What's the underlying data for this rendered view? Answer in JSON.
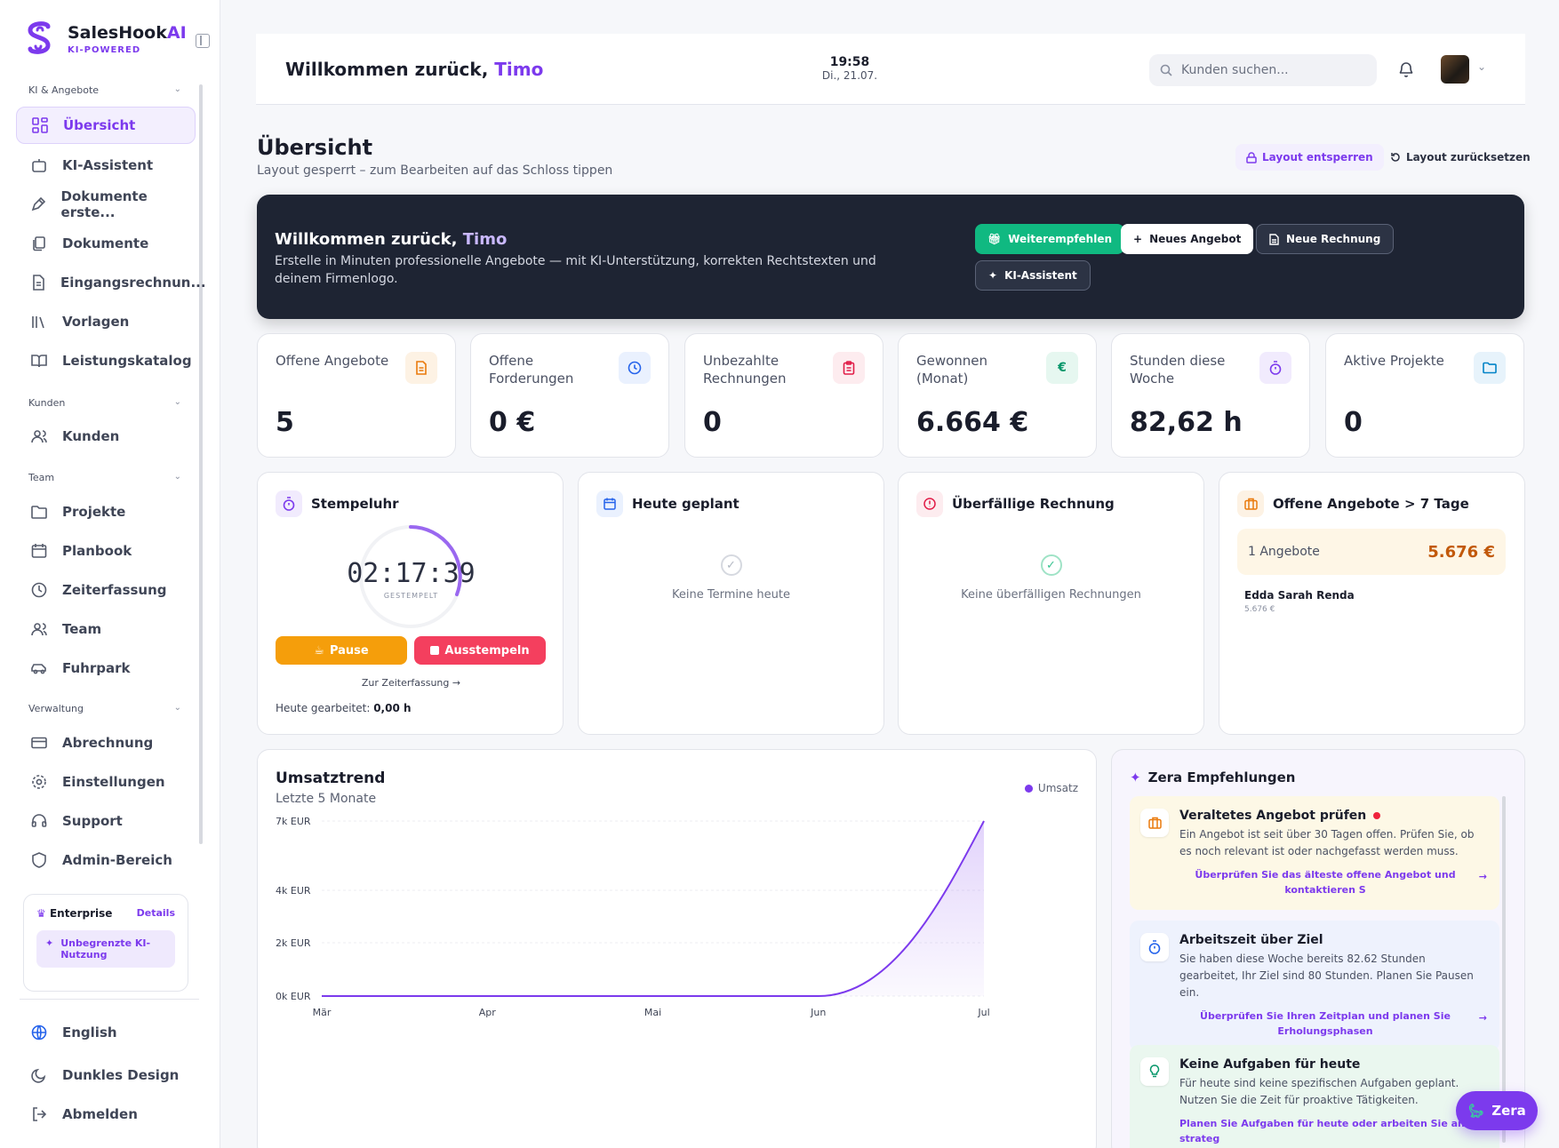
{
  "brand": {
    "name": "SalesHook",
    "name_ai": "AI",
    "tagline": "KI-POWERED"
  },
  "sidebar": {
    "sections": [
      {
        "label": "KI & Angebote",
        "items": [
          {
            "label": "Übersicht",
            "icon": "grid-icon",
            "active": true
          },
          {
            "label": "KI-Assistent",
            "icon": "bot-icon"
          },
          {
            "label": "Dokumente erste...",
            "icon": "pen-icon"
          },
          {
            "label": "Dokumente",
            "icon": "files-icon"
          },
          {
            "label": "Eingangsrechnun...",
            "icon": "receipt-icon"
          },
          {
            "label": "Vorlagen",
            "icon": "library-icon"
          },
          {
            "label": "Leistungskatalog",
            "icon": "book-icon"
          }
        ]
      },
      {
        "label": "Kunden",
        "items": [
          {
            "label": "Kunden",
            "icon": "users-icon"
          }
        ]
      },
      {
        "label": "Team",
        "items": [
          {
            "label": "Projekte",
            "icon": "folder-icon"
          },
          {
            "label": "Planbook",
            "icon": "calendar-icon"
          },
          {
            "label": "Zeiterfassung",
            "icon": "clock-icon"
          },
          {
            "label": "Team",
            "icon": "team-icon"
          },
          {
            "label": "Fuhrpark",
            "icon": "car-icon"
          }
        ]
      },
      {
        "label": "Verwaltung",
        "items": [
          {
            "label": "Abrechnung",
            "icon": "credit-card-icon"
          },
          {
            "label": "Einstellungen",
            "icon": "gear-icon"
          },
          {
            "label": "Support",
            "icon": "headset-icon"
          },
          {
            "label": "Admin-Bereich",
            "icon": "shield-icon"
          }
        ]
      }
    ],
    "plan": {
      "name": "Enterprise",
      "details": "Details",
      "feature": "Unbegrenzte KI-Nutzung"
    },
    "bottom": [
      {
        "label": "English",
        "icon": "globe-icon"
      },
      {
        "label": "Dunkles Design",
        "icon": "moon-icon"
      },
      {
        "label": "Abmelden",
        "icon": "logout-icon"
      }
    ]
  },
  "header": {
    "welcome": "Willkommen zurück,",
    "user": "Timo",
    "time": "19:58",
    "date": "Di., 21.07.",
    "search_placeholder": "Kunden suchen..."
  },
  "page": {
    "title": "Übersicht",
    "subtitle": "Layout gesperrt – zum Bearbeiten auf das Schloss tippen",
    "unlock_label": "Layout entsperren",
    "reset_label": "Layout zurücksetzen"
  },
  "hero": {
    "title": "Willkommen zurück,",
    "user": "Timo",
    "text": "Erstelle in Minuten professionelle Angebote — mit KI-Unterstützung, korrekten Rechtstexten und deinem Firmenlogo.",
    "btn_recommend": "Weiterempfehlen",
    "btn_offer": "Neues Angebot",
    "btn_invoice": "Neue Rechnung",
    "btn_ai": "KI-Assistent"
  },
  "kpis": [
    {
      "label": "Offene Angebote",
      "value": "5",
      "icon": "document-icon",
      "color": "#ea7a0c",
      "bg": "#fdf2e4"
    },
    {
      "label": "Offene Forderungen",
      "value": "0 €",
      "icon": "clock-icon",
      "color": "#2563eb",
      "bg": "#eaf1fe"
    },
    {
      "label": "Unbezahlte Rechnungen",
      "value": "0",
      "icon": "clipboard-icon",
      "color": "#e11d48",
      "bg": "#fdecef"
    },
    {
      "label": "Gewonnen (Monat)",
      "value": "6.664 €",
      "icon": "euro-icon",
      "color": "#059669",
      "bg": "#e6f7f0"
    },
    {
      "label": "Stunden diese Woche",
      "value": "82,62 h",
      "icon": "stopwatch-icon",
      "color": "#7c3aed",
      "bg": "#f1ebfd"
    },
    {
      "label": "Aktive Projekte",
      "value": "0",
      "icon": "folder-icon",
      "color": "#0284c7",
      "bg": "#e7f3fb"
    }
  ],
  "stempeluhr": {
    "title": "Stempeluhr",
    "time": "02:17:39",
    "status": "GESTEMPELT",
    "pause": "Pause",
    "stop": "Ausstempeln",
    "link": "Zur Zeiterfassung →",
    "worked_label": "Heute gearbeitet:",
    "worked_value": "0,00 h"
  },
  "today": {
    "title": "Heute geplant",
    "empty": "Keine Termine heute"
  },
  "overdue": {
    "title": "Überfällige Rechnung",
    "empty": "Keine überfälligen Rechnungen"
  },
  "open_offers": {
    "title": "Offene Angebote > 7 Tage",
    "count": "1 Angebote",
    "total": "5.676 €",
    "customer": "Edda Sarah Renda",
    "amount": "5.676 €"
  },
  "chart_card": {
    "title": "Umsatztrend",
    "subtitle": "Letzte 5 Monate",
    "legend": "Umsatz"
  },
  "chart_data": {
    "type": "area",
    "categories": [
      "Mär",
      "Apr",
      "Mai",
      "Jun",
      "Jul"
    ],
    "series": [
      {
        "name": "Umsatz",
        "values": [
          0,
          0,
          0,
          0,
          7000
        ]
      }
    ],
    "y_ticks": [
      "7k EUR",
      "4k EUR",
      "2k EUR",
      "0k EUR"
    ],
    "ylim": [
      0,
      7000
    ],
    "color": "#7c3aed",
    "grid": true,
    "legend_position": "top-right"
  },
  "zera": {
    "title": "Zera Empfehlungen",
    "fab": "Zera",
    "recommendations": [
      {
        "title": "Veraltetes Angebot prüfen",
        "text": "Ein Angebot ist seit über 30 Tagen offen. Prüfen Sie, ob es noch relevant ist oder nachgefasst werden muss.",
        "action": "Überprüfen Sie das älteste offene Angebot und kontaktieren S",
        "icon": "briefcase-icon",
        "bg": "#fdf8e6"
      },
      {
        "title": "Arbeitszeit über Ziel",
        "text": "Sie haben diese Woche bereits 82.62 Stunden gearbeitet, Ihr Ziel sind 80 Stunden. Planen Sie Pausen ein.",
        "action": "Überprüfen Sie Ihren Zeitplan und planen Sie Erholungsphasen",
        "icon": "stopwatch-icon",
        "bg": "#eef2fd"
      },
      {
        "title": "Keine Aufgaben für heute",
        "text": "Für heute sind keine spezifischen Aufgaben geplant. Nutzen Sie die Zeit für proaktive Tätigkeiten.",
        "action": "Planen Sie Aufgaben für heute oder arbeiten Sie an strateg",
        "icon": "lightbulb-icon",
        "bg": "#eaf7ef"
      }
    ]
  }
}
